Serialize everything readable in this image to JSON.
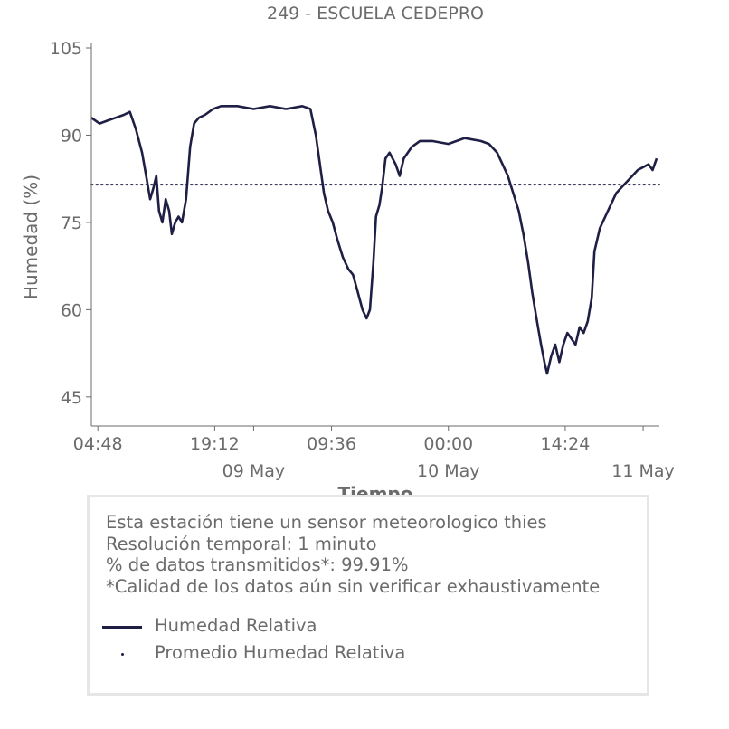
{
  "chart_data": {
    "type": "line",
    "title": "249 - ESCUELA CEDEPRO",
    "xlabel": "Tiempo",
    "ylabel": "Humedad (%)",
    "ylim": [
      40,
      105
    ],
    "xlim": [
      "2025-05-08T04:00",
      "2025-05-11T02:00"
    ],
    "y_ticks": [
      45,
      60,
      75,
      90,
      105
    ],
    "x_ticks": [
      {
        "t": "2025-05-08T04:48",
        "label": "04:48"
      },
      {
        "t": "2025-05-08T19:12",
        "label": "19:12"
      },
      {
        "t": "2025-05-09T09:36",
        "label": "09:36"
      },
      {
        "t": "2025-05-10T00:00",
        "label": "00:00"
      },
      {
        "t": "2025-05-10T14:24",
        "label": "14:24"
      }
    ],
    "x_date_ticks": [
      {
        "t": "2025-05-09T00:00",
        "label": "09 May"
      },
      {
        "t": "2025-05-10T00:00",
        "label": "10 May"
      },
      {
        "t": "2025-05-11T00:00",
        "label": "11 May"
      }
    ],
    "minor_ticks": [
      "2025-05-09T00:00",
      "2025-05-11T00:00"
    ],
    "series": [
      {
        "name": "Humedad Relativa",
        "color": "#1f1f45",
        "style": "solid",
        "points": [
          [
            "2025-05-08T04:00",
            93
          ],
          [
            "2025-05-08T05:00",
            92
          ],
          [
            "2025-05-08T06:00",
            92.5
          ],
          [
            "2025-05-08T07:00",
            93
          ],
          [
            "2025-05-08T08:00",
            93.5
          ],
          [
            "2025-05-08T08:45",
            94
          ],
          [
            "2025-05-08T09:30",
            91
          ],
          [
            "2025-05-08T10:15",
            87
          ],
          [
            "2025-05-08T10:45",
            83
          ],
          [
            "2025-05-08T11:15",
            79
          ],
          [
            "2025-05-08T11:40",
            81
          ],
          [
            "2025-05-08T12:00",
            83
          ],
          [
            "2025-05-08T12:20",
            77
          ],
          [
            "2025-05-08T12:45",
            75
          ],
          [
            "2025-05-08T13:10",
            79
          ],
          [
            "2025-05-08T13:35",
            77
          ],
          [
            "2025-05-08T13:55",
            73
          ],
          [
            "2025-05-08T14:20",
            75
          ],
          [
            "2025-05-08T14:45",
            76
          ],
          [
            "2025-05-08T15:10",
            75
          ],
          [
            "2025-05-08T15:40",
            79
          ],
          [
            "2025-05-08T16:10",
            88
          ],
          [
            "2025-05-08T16:40",
            92
          ],
          [
            "2025-05-08T17:15",
            93
          ],
          [
            "2025-05-08T18:00",
            93.5
          ],
          [
            "2025-05-08T19:00",
            94.5
          ],
          [
            "2025-05-08T20:00",
            95
          ],
          [
            "2025-05-08T22:00",
            95
          ],
          [
            "2025-05-09T00:00",
            94.5
          ],
          [
            "2025-05-09T02:00",
            95
          ],
          [
            "2025-05-09T04:00",
            94.5
          ],
          [
            "2025-05-09T06:00",
            95
          ],
          [
            "2025-05-09T07:00",
            94.5
          ],
          [
            "2025-05-09T07:40",
            90
          ],
          [
            "2025-05-09T08:10",
            85
          ],
          [
            "2025-05-09T08:40",
            80
          ],
          [
            "2025-05-09T09:10",
            77
          ],
          [
            "2025-05-09T09:45",
            75
          ],
          [
            "2025-05-09T10:20",
            72
          ],
          [
            "2025-05-09T11:00",
            69
          ],
          [
            "2025-05-09T11:40",
            67
          ],
          [
            "2025-05-09T12:15",
            66
          ],
          [
            "2025-05-09T12:50",
            63
          ],
          [
            "2025-05-09T13:25",
            60
          ],
          [
            "2025-05-09T13:55",
            58.5
          ],
          [
            "2025-05-09T14:20",
            60
          ],
          [
            "2025-05-09T14:45",
            68
          ],
          [
            "2025-05-09T15:05",
            76
          ],
          [
            "2025-05-09T15:30",
            78
          ],
          [
            "2025-05-09T15:50",
            81
          ],
          [
            "2025-05-09T16:15",
            86
          ],
          [
            "2025-05-09T16:45",
            87
          ],
          [
            "2025-05-09T17:30",
            85
          ],
          [
            "2025-05-09T18:00",
            83
          ],
          [
            "2025-05-09T18:30",
            86
          ],
          [
            "2025-05-09T19:30",
            88
          ],
          [
            "2025-05-09T20:30",
            89
          ],
          [
            "2025-05-09T22:00",
            89
          ],
          [
            "2025-05-10T00:00",
            88.5
          ],
          [
            "2025-05-10T02:00",
            89.5
          ],
          [
            "2025-05-10T04:00",
            89
          ],
          [
            "2025-05-10T05:00",
            88.5
          ],
          [
            "2025-05-10T06:00",
            87
          ],
          [
            "2025-05-10T06:40",
            85
          ],
          [
            "2025-05-10T07:20",
            83
          ],
          [
            "2025-05-10T08:00",
            80
          ],
          [
            "2025-05-10T08:40",
            77
          ],
          [
            "2025-05-10T09:15",
            73
          ],
          [
            "2025-05-10T09:50",
            68
          ],
          [
            "2025-05-10T10:20",
            63
          ],
          [
            "2025-05-10T10:55",
            58
          ],
          [
            "2025-05-10T11:25",
            54
          ],
          [
            "2025-05-10T11:50",
            51
          ],
          [
            "2025-05-10T12:10",
            49
          ],
          [
            "2025-05-10T12:40",
            52
          ],
          [
            "2025-05-10T13:10",
            54
          ],
          [
            "2025-05-10T13:40",
            51
          ],
          [
            "2025-05-10T14:10",
            54
          ],
          [
            "2025-05-10T14:40",
            56
          ],
          [
            "2025-05-10T15:10",
            55
          ],
          [
            "2025-05-10T15:40",
            54
          ],
          [
            "2025-05-10T16:10",
            57
          ],
          [
            "2025-05-10T16:40",
            56
          ],
          [
            "2025-05-10T17:10",
            58
          ],
          [
            "2025-05-10T17:40",
            62
          ],
          [
            "2025-05-10T18:00",
            70
          ],
          [
            "2025-05-10T18:40",
            74
          ],
          [
            "2025-05-10T19:20",
            76
          ],
          [
            "2025-05-10T20:00",
            78
          ],
          [
            "2025-05-10T20:40",
            80
          ],
          [
            "2025-05-10T21:20",
            81
          ],
          [
            "2025-05-10T22:00",
            82
          ],
          [
            "2025-05-10T22:40",
            83
          ],
          [
            "2025-05-10T23:20",
            84
          ],
          [
            "2025-05-11T00:00",
            84.5
          ],
          [
            "2025-05-11T00:40",
            85
          ],
          [
            "2025-05-11T01:10",
            84
          ],
          [
            "2025-05-11T01:40",
            86
          ]
        ]
      },
      {
        "name": "Promedio Humedad Relativa",
        "color": "#1f1f45",
        "style": "dotted",
        "constant": 81.5
      }
    ]
  },
  "info": {
    "lines": [
      "Esta estación tiene un sensor meteorologico thies",
      "Resolución temporal: 1 minuto",
      "% de datos transmitidos*: 99.91%",
      "*Calidad de los datos aún sin verificar exhaustivamente"
    ]
  },
  "legend": {
    "items": [
      {
        "label": "Humedad Relativa",
        "kind": "line"
      },
      {
        "label": "Promedio Humedad Relativa",
        "kind": "dot"
      }
    ]
  }
}
